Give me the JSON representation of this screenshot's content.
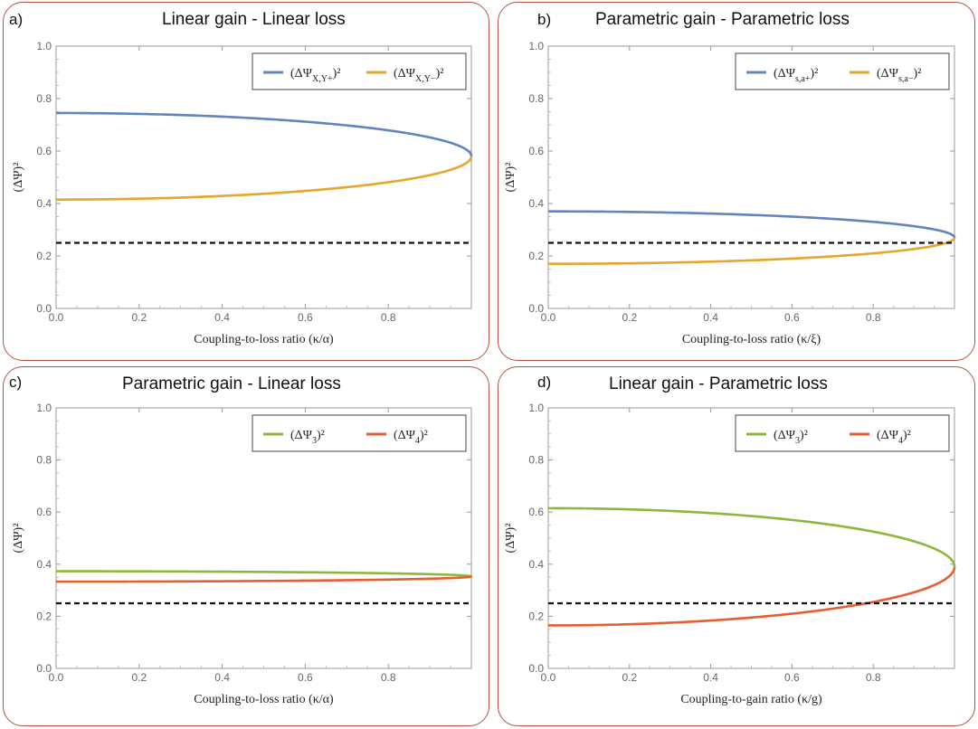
{
  "colors": {
    "blue": "#5f84c0",
    "orange": "#e5a62a",
    "green": "#8fb63c",
    "red": "#e65c33",
    "dash": "#111111",
    "frame": "#b5513f"
  },
  "chart_data": [
    {
      "panel": "a",
      "letter": "a)",
      "title": "Linear gain - Linear loss",
      "type": "line",
      "xlabel": "Coupling-to-loss ratio (κ/α)",
      "ylabel": "(ΔΨ)²",
      "xlim": [
        0,
        1
      ],
      "ylim": [
        0,
        1
      ],
      "xticks": [
        "0.0",
        "0.2",
        "0.4",
        "0.6",
        "0.8"
      ],
      "yticks": [
        "0.0",
        "0.2",
        "0.4",
        "0.6",
        "0.8",
        "1.0"
      ],
      "legend_position": "top-right",
      "series": [
        {
          "name": "(ΔΨX,Y+)²",
          "legend_main": "(ΔΨ",
          "legend_sub": "X,Y+",
          "legend_tail": ")²",
          "color": "#5f84c0",
          "model": "branch",
          "mid": 0.58,
          "amp": 0.165,
          "sign": 1
        },
        {
          "name": "(ΔΨX,Y−)²",
          "legend_main": "(ΔΨ",
          "legend_sub": "X,Y−",
          "legend_tail": ")²",
          "color": "#e5a62a",
          "model": "branch",
          "mid": 0.58,
          "amp": 0.165,
          "sign": -1
        },
        {
          "name": "",
          "color": "#111111",
          "dashed": true,
          "model": "const",
          "value": 0.25
        }
      ]
    },
    {
      "panel": "b",
      "letter": "b)",
      "title": "Parametric gain - Parametric loss",
      "type": "line",
      "xlabel": "Coupling-to-loss ratio (κ/ξ)",
      "ylabel": "(ΔΨ)²",
      "xlim": [
        0,
        1
      ],
      "ylim": [
        0,
        1
      ],
      "xticks": [
        "0.0",
        "0.2",
        "0.4",
        "0.6",
        "0.8"
      ],
      "yticks": [
        "0.0",
        "0.2",
        "0.4",
        "0.6",
        "0.8",
        "1.0"
      ],
      "legend_position": "top-right",
      "series": [
        {
          "name": "(ΔΨs,a+)²",
          "legend_main": "(ΔΨ",
          "legend_sub": "s,a+",
          "legend_tail": ")²",
          "color": "#5f84c0",
          "model": "branch",
          "mid": 0.27,
          "amp": 0.1,
          "sign": 1
        },
        {
          "name": "(ΔΨs,a−)²",
          "legend_main": "(ΔΨ",
          "legend_sub": "s,a−",
          "legend_tail": ")²",
          "color": "#e5a62a",
          "model": "branch",
          "mid": 0.27,
          "amp": 0.1,
          "sign": -1
        },
        {
          "name": "",
          "color": "#111111",
          "dashed": true,
          "model": "const",
          "value": 0.25
        }
      ]
    },
    {
      "panel": "c",
      "letter": "c)",
      "title": "Parametric gain - Linear loss",
      "type": "line",
      "xlabel": "Coupling-to-loss ratio (κ/α)",
      "ylabel": "(ΔΨ)²",
      "xlim": [
        0,
        1
      ],
      "ylim": [
        0,
        1
      ],
      "xticks": [
        "0.0",
        "0.2",
        "0.4",
        "0.6",
        "0.8"
      ],
      "yticks": [
        "0.0",
        "0.2",
        "0.4",
        "0.6",
        "0.8",
        "1.0"
      ],
      "legend_position": "top-right",
      "series": [
        {
          "name": "(ΔΨ3)²",
          "legend_main": "(ΔΨ",
          "legend_sub": "3",
          "legend_tail": ")²",
          "color": "#8fb63c",
          "model": "branch",
          "mid": 0.353,
          "amp": 0.02,
          "sign": 1
        },
        {
          "name": "(ΔΨ4)²",
          "legend_main": "(ΔΨ",
          "legend_sub": "4",
          "legend_tail": ")²",
          "color": "#e65c33",
          "model": "branch",
          "mid": 0.353,
          "amp": 0.02,
          "sign": -1
        },
        {
          "name": "",
          "color": "#111111",
          "dashed": true,
          "model": "const",
          "value": 0.25
        }
      ]
    },
    {
      "panel": "d",
      "letter": "d)",
      "title": "Linear gain - Parametric loss",
      "type": "line",
      "xlabel": "Coupling-to-gain ratio (κ/g)",
      "ylabel": "(ΔΨ)²",
      "xlim": [
        0,
        1
      ],
      "ylim": [
        0,
        1
      ],
      "xticks": [
        "0.0",
        "0.2",
        "0.4",
        "0.6",
        "0.8"
      ],
      "yticks": [
        "0.0",
        "0.2",
        "0.4",
        "0.6",
        "0.8",
        "1.0"
      ],
      "legend_position": "top-right",
      "series": [
        {
          "name": "(ΔΨ3)²",
          "legend_main": "(ΔΨ",
          "legend_sub": "3",
          "legend_tail": ")²",
          "color": "#8fb63c",
          "model": "branch",
          "mid": 0.39,
          "amp": 0.225,
          "sign": 1
        },
        {
          "name": "(ΔΨ4)²",
          "legend_main": "(ΔΨ",
          "legend_sub": "4",
          "legend_tail": ")²",
          "color": "#e65c33",
          "model": "branch",
          "mid": 0.39,
          "amp": 0.225,
          "sign": -1
        },
        {
          "name": "",
          "color": "#111111",
          "dashed": true,
          "model": "const",
          "value": 0.25
        }
      ]
    }
  ]
}
